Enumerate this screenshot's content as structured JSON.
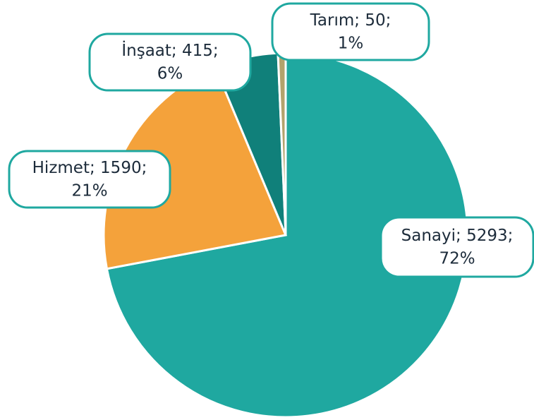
{
  "chart_data": {
    "type": "pie",
    "categories": [
      "Sanayi",
      "Hizmet",
      "İnşaat",
      "Tarım"
    ],
    "values": [
      5293,
      1590,
      415,
      50
    ],
    "percent_labels": [
      "72%",
      "21%",
      "6%",
      "1%"
    ],
    "label_separator": "; ",
    "colors": [
      "#1fa8a0",
      "#f4a23b",
      "#10807a",
      "#b3a36c"
    ]
  }
}
